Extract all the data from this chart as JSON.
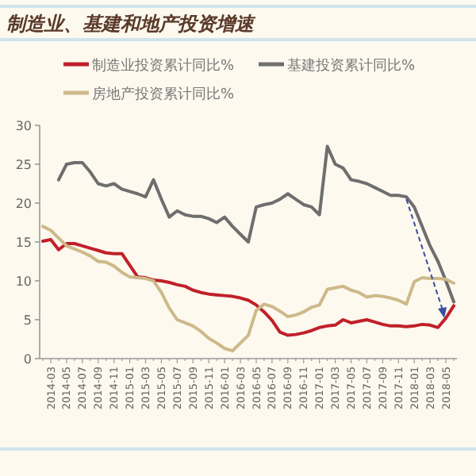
{
  "chart_data": {
    "type": "line",
    "title": "制造业、基建和地产投资增速",
    "legend": "top",
    "marker": "none",
    "line_style": "solid",
    "grid": false,
    "categories": [
      null,
      "2014-03",
      null,
      "2014-05",
      null,
      "2014-07",
      null,
      "2014-09",
      null,
      "2014-11",
      null,
      "2015-01",
      null,
      "2015-03",
      null,
      "2015-05",
      null,
      "2015-07",
      null,
      "2015-09",
      null,
      "2015-11",
      null,
      "2016-01",
      null,
      "2016-03",
      null,
      "2016-05",
      null,
      "2016-07",
      null,
      "2016-09",
      null,
      "2016-11",
      null,
      "2017-01",
      null,
      "2017-03",
      null,
      "2017-05",
      null,
      "2017-07",
      null,
      "2017-09",
      null,
      "2017-11",
      null,
      "2018-01",
      null,
      "2018-03",
      null,
      "2018-05",
      null
    ],
    "ylim": [
      0,
      30
    ],
    "yticks": [
      0,
      5,
      10,
      15,
      20,
      25,
      30
    ],
    "series": [
      {
        "name": "制造业投资累计同比%",
        "color": "#c0202a",
        "values": [
          15.1,
          15.3,
          14.0,
          14.8,
          14.8,
          14.5,
          14.2,
          13.9,
          13.6,
          13.5,
          13.5,
          12.0,
          10.5,
          10.4,
          10.1,
          10.0,
          9.8,
          9.5,
          9.3,
          8.8,
          8.5,
          8.3,
          8.2,
          8.1,
          8.0,
          7.8,
          7.5,
          6.9,
          6.0,
          4.9,
          3.4,
          3.0,
          3.1,
          3.3,
          3.6,
          4.0,
          4.2,
          4.3,
          5.0,
          4.6,
          4.8,
          5.0,
          4.7,
          4.4,
          4.2,
          4.2,
          4.1,
          4.2,
          4.4,
          4.3,
          4.0,
          5.2,
          6.8
        ]
      },
      {
        "name": "基建投资累计同比%",
        "color": "#6e6e6e",
        "values": [
          null,
          null,
          23.0,
          25.0,
          25.2,
          25.2,
          24.0,
          22.5,
          22.2,
          22.5,
          21.8,
          21.5,
          21.2,
          20.8,
          23.0,
          20.5,
          18.2,
          19.0,
          18.5,
          18.3,
          18.3,
          18.0,
          17.5,
          18.2,
          17.0,
          16.0,
          15.0,
          19.5,
          19.8,
          20.0,
          20.5,
          21.2,
          20.5,
          19.8,
          19.5,
          18.5,
          27.3,
          25.0,
          24.5,
          23.0,
          22.8,
          22.5,
          22.0,
          21.5,
          21.0,
          21.0,
          20.8,
          19.5,
          17.0,
          14.5,
          12.5,
          10.0,
          7.3
        ]
      },
      {
        "name": "房地产投资累计同比%",
        "color": "#cdb98a",
        "values": [
          17.0,
          16.5,
          15.5,
          14.5,
          14.1,
          13.7,
          13.2,
          12.5,
          12.4,
          11.9,
          11.1,
          10.5,
          10.4,
          10.3,
          10.0,
          8.5,
          6.5,
          5.0,
          4.6,
          4.2,
          3.5,
          2.6,
          2.0,
          1.3,
          1.0,
          2.0,
          3.0,
          6.2,
          7.0,
          6.7,
          6.1,
          5.4,
          5.6,
          6.0,
          6.6,
          6.9,
          8.9,
          9.1,
          9.3,
          8.8,
          8.5,
          7.9,
          8.1,
          8.0,
          7.8,
          7.5,
          7.0,
          9.9,
          10.4,
          10.3,
          10.3,
          10.2,
          9.7
        ]
      }
    ]
  }
}
